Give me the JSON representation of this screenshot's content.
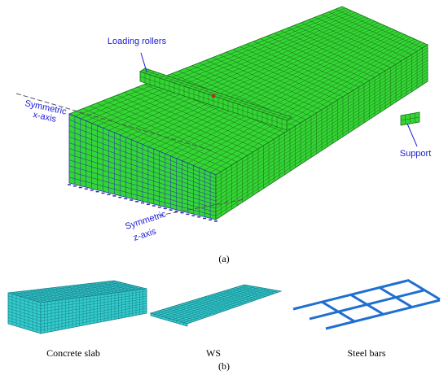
{
  "panel_a": {
    "label": "(a)",
    "annotations": {
      "loading_rollers": "Loading rollers",
      "symmetric_x": [
        "Symmetric",
        "x-axis"
      ],
      "support": "Support",
      "symmetric_z": [
        "Symmetric",
        "z-axis"
      ]
    }
  },
  "panel_b": {
    "label": "(b)",
    "items": [
      "Concrete slab",
      "WS",
      "Steel bars"
    ]
  }
}
